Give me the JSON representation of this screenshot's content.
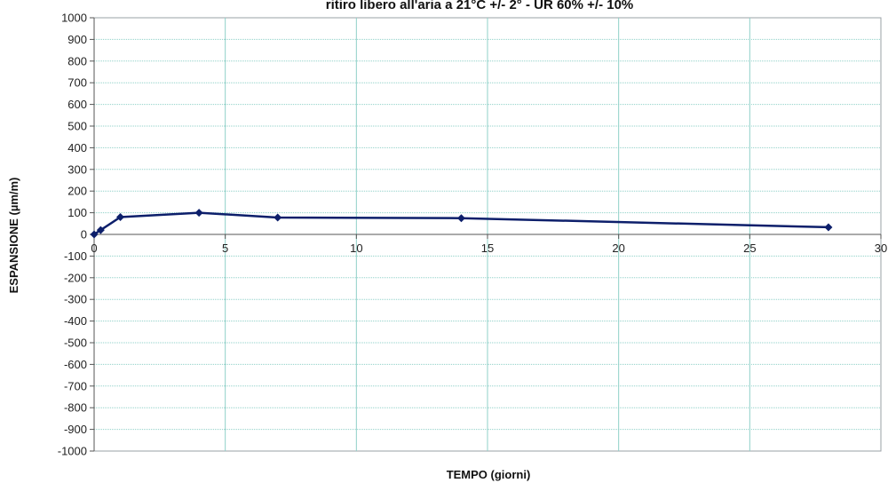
{
  "chart_data": {
    "type": "line",
    "title": "ritiro libero all'aria a 21°C +/- 2° - UR 60% +/- 10%",
    "xlabel": "TEMPO (giorni)",
    "ylabel": "ESPANSIONE (µm/m)",
    "xlim": [
      0,
      30
    ],
    "ylim": [
      -1000,
      1000
    ],
    "x_ticks": [
      0,
      5,
      10,
      15,
      20,
      25,
      30
    ],
    "y_ticks": [
      -1000,
      -900,
      -800,
      -700,
      -600,
      -500,
      -400,
      -300,
      -200,
      -100,
      0,
      100,
      200,
      300,
      400,
      500,
      600,
      700,
      800,
      900,
      1000
    ],
    "grid": true,
    "series": [
      {
        "color": "#0d1f6b",
        "points": [
          {
            "x": 0,
            "y": 0
          },
          {
            "x": 0.25,
            "y": 20
          },
          {
            "x": 1,
            "y": 80
          },
          {
            "x": 4,
            "y": 100
          },
          {
            "x": 7,
            "y": 78
          },
          {
            "x": 14,
            "y": 75
          },
          {
            "x": 28,
            "y": 33
          }
        ]
      }
    ]
  },
  "colors": {
    "grid": "#8fd0c8",
    "axis": "#555555",
    "plot_border": "#9aa0a6"
  }
}
